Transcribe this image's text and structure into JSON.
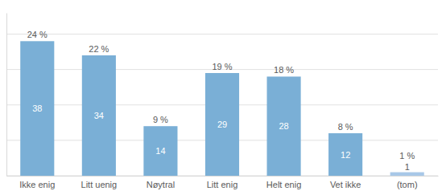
{
  "chart_data": {
    "type": "bar",
    "categories": [
      "Ikke enig",
      "Litt uenig",
      "Nøytral",
      "Litt enig",
      "Helt enig",
      "Vet ikke",
      "(tom)"
    ],
    "values": [
      38,
      34,
      14,
      29,
      28,
      12,
      1
    ],
    "colors": [
      "#7aafd6",
      "#7aafd6",
      "#7aafd6",
      "#7aafd6",
      "#7aafd6",
      "#7aafd6",
      "#a8c8e8"
    ],
    "percentages": [
      24,
      22,
      9,
      19,
      18,
      8,
      1
    ],
    "percentage_labels": [
      "24 %",
      "22 %",
      "9 %",
      "19 %",
      "18 %",
      "8 %",
      "1 %"
    ],
    "ylim": [
      0,
      46
    ],
    "yticks": [
      0,
      10,
      20,
      30,
      40
    ],
    "grid": true,
    "data_labels": true,
    "tick_labels": "x"
  }
}
